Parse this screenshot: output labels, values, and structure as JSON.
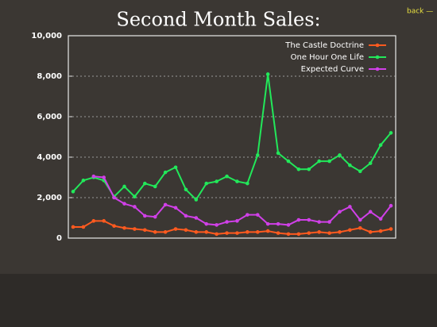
{
  "nav": {
    "back": "back —"
  },
  "chart_data": {
    "type": "line",
    "title": "Second Month Sales:",
    "categories": [
      null,
      null,
      null,
      null,
      null,
      null,
      null,
      null,
      null,
      null,
      null,
      null,
      null,
      null,
      null,
      null,
      null,
      null,
      null,
      null,
      null,
      null,
      null,
      null,
      null,
      null,
      null,
      null,
      null,
      null,
      null,
      null
    ],
    "series": [
      {
        "name": "The Castle Doctrine",
        "color": "#ff5a1f",
        "values": [
          550,
          550,
          850,
          850,
          600,
          500,
          450,
          400,
          300,
          300,
          450,
          400,
          300,
          300,
          200,
          250,
          250,
          300,
          300,
          350,
          250,
          200,
          200,
          250,
          300,
          250,
          300,
          400,
          500,
          300,
          350,
          450
        ]
      },
      {
        "name": "One Hour One Life",
        "color": "#22e85a",
        "values": [
          2300,
          2850,
          3000,
          2850,
          2050,
          2550,
          2050,
          2700,
          2550,
          3250,
          3500,
          2400,
          1900,
          2700,
          2800,
          3050,
          2800,
          2700,
          4100,
          8100,
          4200,
          3800,
          3400,
          3400,
          3800,
          3800,
          4100,
          3600,
          3300,
          3700,
          4600,
          5200
        ]
      },
      {
        "name": "Expected Curve",
        "color": "#d040e8",
        "values": [
          null,
          null,
          3050,
          3000,
          2000,
          1700,
          1550,
          1100,
          1050,
          1650,
          1500,
          1100,
          1000,
          700,
          650,
          800,
          850,
          1150,
          1150,
          700,
          700,
          650,
          900,
          900,
          800,
          800,
          1300,
          1550,
          900,
          1300,
          950,
          1600
        ]
      }
    ],
    "ylim": [
      0,
      10000
    ],
    "yticks": [
      0,
      {
        "value": 2000,
        "label": "2,000"
      },
      {
        "value": 4000,
        "label": "4,000"
      },
      {
        "value": 6000,
        "label": "6,000"
      },
      {
        "value": 8000,
        "label": "8,000"
      },
      {
        "value": 10000,
        "label": "10,000"
      }
    ],
    "grid": true,
    "legend": "top-right"
  }
}
